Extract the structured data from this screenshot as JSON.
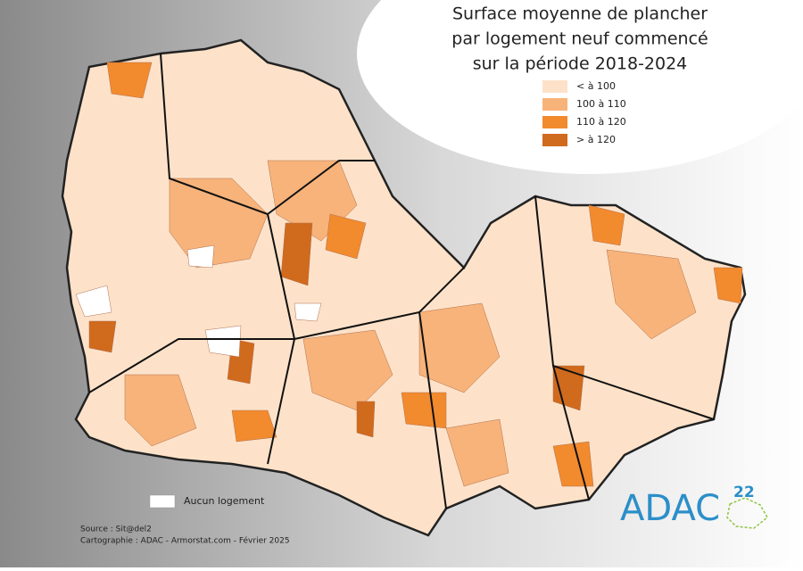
{
  "title": [
    "Surface moyenne de plancher",
    "par logement neuf commencé",
    "sur la période 2018-2024"
  ],
  "legend": [
    {
      "label": "< à 100",
      "color": "#fde2c9"
    },
    {
      "label": "100 à 110",
      "color": "#f7b37a"
    },
    {
      "label": "110 à 120",
      "color": "#f28a2e"
    },
    {
      "label": "> à 120",
      "color": "#d06a1d"
    }
  ],
  "no_data": {
    "label": "Aucun logement",
    "color": "#ffffff"
  },
  "source": "Source : Sit@del2",
  "credits": "Cartographie : ADAC - Armorstat.com - Février 2025",
  "logo": {
    "text": "ADAC",
    "number": "22"
  }
}
